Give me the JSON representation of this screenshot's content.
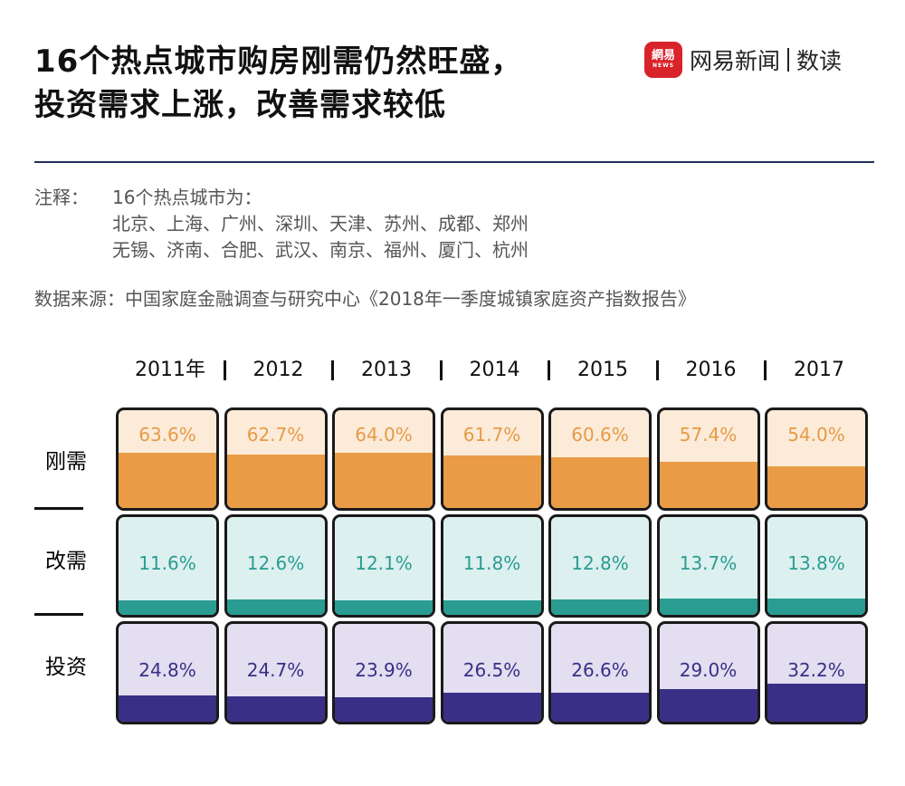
{
  "title_lines": [
    "16个热点城市购房刚需仍然旺盛，",
    "投资需求上涨，改善需求较低"
  ],
  "brand": {
    "logo_top": "網易",
    "logo_bottom": "NEWS",
    "name": "网易新闻",
    "sub": "数读"
  },
  "notes": {
    "label": "注释：",
    "lines": [
      "16个热点城市为：",
      "北京、上海、广州、深圳、天津、苏州、成都、郑州",
      "无锡、济南、合肥、武汉、南京、福州、厦门、杭州"
    ],
    "source": "数据来源：中国家庭金融调查与研究中心《2018年一季度城镇家庭资产指数报告》"
  },
  "colors": {
    "rigid_fill": "#ea9b45",
    "rigid_bg": "#fcebd8",
    "rigid_text": "#e69a47",
    "improve_fill": "#2a9c91",
    "improve_bg": "#dcf0ef",
    "improve_text": "#2a9c91",
    "invest_fill": "#3a2f86",
    "invest_bg": "#e3def0",
    "invest_text": "#3a2f86"
  },
  "chart_data": {
    "type": "table",
    "categories": [
      "2011年",
      "2012",
      "2013",
      "2014",
      "2015",
      "2016",
      "2017"
    ],
    "series": [
      {
        "name": "刚需",
        "values": [
          63.6,
          62.7,
          64.0,
          61.7,
          60.6,
          57.4,
          54.0
        ],
        "labels": [
          "63.6%",
          "62.7%",
          "64.0%",
          "61.7%",
          "60.6%",
          "57.4%",
          "54.0%"
        ]
      },
      {
        "name": "改需",
        "values": [
          11.6,
          12.6,
          12.1,
          11.8,
          12.8,
          13.7,
          13.8
        ],
        "labels": [
          "11.6%",
          "12.6%",
          "12.1%",
          "11.8%",
          "12.8%",
          "13.7%",
          "13.8%"
        ]
      },
      {
        "name": "投资",
        "values": [
          24.8,
          24.7,
          23.9,
          26.5,
          26.6,
          29.0,
          32.2
        ],
        "labels": [
          "24.8%",
          "24.7%",
          "23.9%",
          "26.5%",
          "26.6%",
          "29.0%",
          "32.2%"
        ]
      }
    ]
  }
}
